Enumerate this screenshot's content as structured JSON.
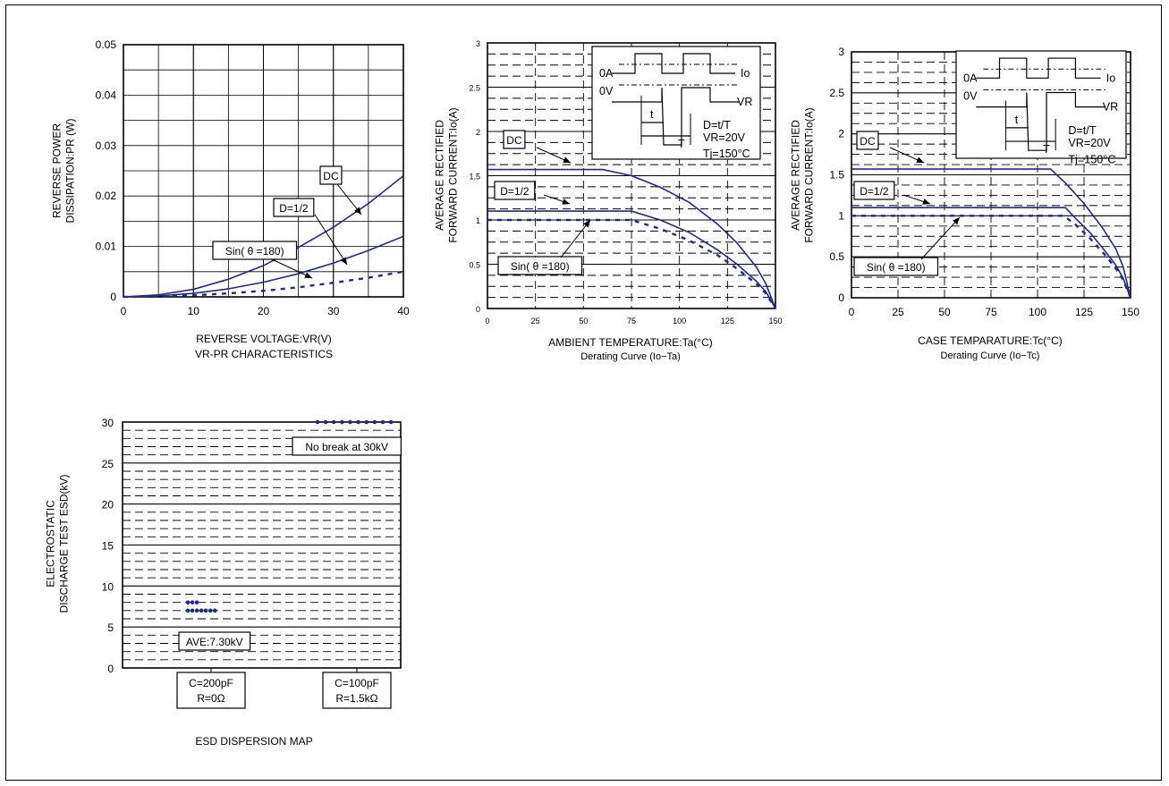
{
  "colors": {
    "curve": "#1f2a8c",
    "grid": "#000000",
    "background": "#ffffff"
  },
  "chart_data": [
    {
      "id": "vr-pr",
      "type": "line",
      "xlim": [
        0,
        40
      ],
      "ylim": [
        0,
        0.05
      ],
      "x_ticks": [
        0,
        10,
        20,
        30,
        40
      ],
      "y_ticks": [
        0,
        0.01,
        0.02,
        0.03,
        0.04,
        0.05
      ],
      "x_tick_labels": [
        "0",
        "10",
        "20",
        "30",
        "40"
      ],
      "y_tick_labels": [
        "0",
        "0.01",
        "0.02",
        "0.03",
        "0.04",
        "0.05"
      ],
      "grid": "solid",
      "xlabel": "REVERSE VOLTAGE:VR(V)",
      "title_line": "VR-PR CHARACTERISTICS",
      "ylabel_lines": [
        "REVERSE POWER",
        "DISSIPATION:PR (W)"
      ],
      "series": [
        {
          "name": "DC",
          "style": "solid",
          "x": [
            0,
            5,
            10,
            15,
            20,
            25,
            30,
            35,
            40
          ],
          "y": [
            0,
            0.0004,
            0.0015,
            0.0035,
            0.0062,
            0.0098,
            0.0138,
            0.0185,
            0.024
          ]
        },
        {
          "name": "D=1/2",
          "style": "solid",
          "x": [
            0,
            5,
            10,
            15,
            20,
            25,
            30,
            35,
            40
          ],
          "y": [
            0,
            0.0002,
            0.0007,
            0.0016,
            0.0029,
            0.0046,
            0.0067,
            0.0092,
            0.012
          ]
        },
        {
          "name": "Sin(θ =180)",
          "style": "dashed",
          "x": [
            0,
            5,
            10,
            15,
            20,
            25,
            30,
            35,
            40
          ],
          "y": [
            0,
            0.0001,
            0.0003,
            0.0007,
            0.0012,
            0.0019,
            0.0028,
            0.0038,
            0.005
          ]
        }
      ],
      "annotations": [
        "DC",
        "D=1/2",
        "Sin( θ =180)"
      ]
    },
    {
      "id": "io-ta",
      "type": "line",
      "xlim": [
        0,
        150
      ],
      "ylim": [
        0,
        3
      ],
      "x_ticks": [
        0,
        25,
        50,
        75,
        100,
        125,
        150
      ],
      "y_ticks": [
        0,
        0.5,
        1,
        1.5,
        2,
        2.5,
        3
      ],
      "x_tick_labels": [
        "0",
        "25",
        "50",
        "75",
        "100",
        "125",
        "150"
      ],
      "y_tick_labels": [
        "0",
        "0.5",
        "1",
        "1.5",
        "2",
        "2.5",
        "3"
      ],
      "grid": "dashed",
      "xlabel": "AMBIENT TEMPERATURE:Ta(°C)",
      "title_line": "Derating Curve (Io−Ta)",
      "ylabel_lines": [
        "AVERAGE RECTIFIED",
        "FORWARD CURRENT:Io(A)"
      ],
      "series": [
        {
          "name": "DC",
          "style": "solid",
          "x": [
            0,
            60,
            75,
            90,
            105,
            120,
            130,
            140,
            145,
            150
          ],
          "y": [
            1.57,
            1.57,
            1.5,
            1.37,
            1.2,
            0.95,
            0.74,
            0.47,
            0.28,
            0
          ]
        },
        {
          "name": "D=1/2",
          "style": "solid",
          "x": [
            0,
            75,
            90,
            105,
            120,
            130,
            140,
            145,
            150
          ],
          "y": [
            1.1,
            1.1,
            1.0,
            0.86,
            0.66,
            0.5,
            0.31,
            0.19,
            0
          ]
        },
        {
          "name": "Sin(θ =180)",
          "style": "dashed",
          "x": [
            0,
            75,
            90,
            105,
            120,
            130,
            140,
            145,
            150
          ],
          "y": [
            1.0,
            1.0,
            0.9,
            0.77,
            0.6,
            0.45,
            0.28,
            0.17,
            0
          ]
        }
      ],
      "annotations": [
        "DC",
        "D=1/2",
        "Sin( θ =180)"
      ],
      "inset": {
        "labels": [
          "0A",
          "0V",
          "Io",
          "VR",
          "t",
          "T",
          "D=t/T",
          "VR=20V",
          "Tj=150°C"
        ]
      }
    },
    {
      "id": "io-tc",
      "type": "line",
      "xlim": [
        0,
        150
      ],
      "ylim": [
        0,
        3
      ],
      "x_ticks": [
        0,
        25,
        50,
        75,
        100,
        125,
        150
      ],
      "y_ticks": [
        0,
        0.5,
        1,
        1.5,
        2,
        2.5,
        3
      ],
      "x_tick_labels": [
        "0",
        "25",
        "50",
        "75",
        "100",
        "125",
        "150"
      ],
      "y_tick_labels": [
        "0",
        "0.5",
        "1",
        "1.5",
        "2",
        "2.5",
        "3"
      ],
      "grid": "dashed",
      "xlabel": "CASE TEMPARATURE:Tc(°C)",
      "title_line": "Derating Curve (Io−Tc)",
      "ylabel_lines": [
        "AVERAGE RECTIFIED",
        "FORWARD CURRENT:Io(A)"
      ],
      "series": [
        {
          "name": "DC",
          "style": "solid",
          "x": [
            0,
            107,
            115,
            125,
            135,
            142,
            146,
            150
          ],
          "y": [
            1.57,
            1.57,
            1.4,
            1.15,
            0.85,
            0.6,
            0.38,
            0
          ]
        },
        {
          "name": "D=1/2",
          "style": "solid",
          "x": [
            0,
            115,
            120,
            128,
            136,
            142,
            146,
            150
          ],
          "y": [
            1.1,
            1.1,
            0.98,
            0.8,
            0.58,
            0.4,
            0.24,
            0
          ]
        },
        {
          "name": "Sin(θ =180)",
          "style": "dashed",
          "x": [
            0,
            114,
            120,
            128,
            136,
            142,
            146,
            150
          ],
          "y": [
            1.0,
            1.0,
            0.9,
            0.73,
            0.53,
            0.36,
            0.22,
            0
          ]
        }
      ],
      "annotations": [
        "DC",
        "D=1/2",
        "Sin( θ =180)"
      ],
      "inset": {
        "labels": [
          "0A",
          "0V",
          "Io",
          "VR",
          "t",
          "T",
          "D=t/T",
          "VR=20V",
          "Tj=150°C"
        ]
      }
    },
    {
      "id": "esd",
      "type": "scatter",
      "ylim": [
        0,
        30
      ],
      "y_ticks": [
        0,
        5,
        10,
        15,
        20,
        25,
        30
      ],
      "y_tick_labels": [
        "0",
        "5",
        "10",
        "15",
        "20",
        "25",
        "30"
      ],
      "grid": "dashed",
      "categories": [
        {
          "lines": [
            "C=200pF",
            "R=0Ω"
          ]
        },
        {
          "lines": [
            "C=100pF",
            "R=1.5kΩ"
          ]
        }
      ],
      "series": [
        {
          "category": 0,
          "points": [
            8,
            8,
            8,
            7,
            7,
            7,
            7,
            7,
            7,
            7
          ]
        },
        {
          "category": 1,
          "points": [
            30,
            30,
            30,
            30,
            30,
            30,
            30,
            30,
            30,
            30
          ]
        }
      ],
      "xlabel": "ESD DISPERSION MAP",
      "ylabel_lines": [
        "ELECTROSTATIC",
        "DISCHARGE TEST ESD(kV)"
      ],
      "annotations": [
        "AVE:7.30kV",
        "No break at 30kV"
      ]
    }
  ]
}
